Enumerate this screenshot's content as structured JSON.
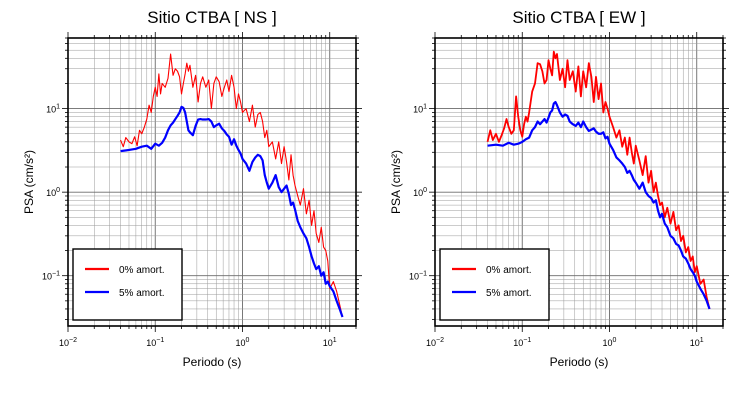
{
  "chart_data": [
    {
      "type": "line",
      "title": "Sitio CTBA [ NS ]",
      "xlabel": "Periodo (s)",
      "ylabel": "PSA (cm/s²)",
      "xscale": "log",
      "yscale": "log",
      "xlim": [
        0.01,
        20
      ],
      "ylim": [
        0.025,
        70
      ],
      "grid": true,
      "legend_placement": "bottom-left",
      "x_tick_labels": [
        {
          "value": 0.01,
          "base": "10",
          "exp": "−2"
        },
        {
          "value": 0.1,
          "base": "10",
          "exp": "−1"
        },
        {
          "value": 1,
          "base": "10",
          "exp": "0"
        },
        {
          "value": 10,
          "base": "10",
          "exp": "1"
        }
      ],
      "y_tick_labels": [
        {
          "value": 0.1,
          "base": "10",
          "exp": "−1"
        },
        {
          "value": 1,
          "base": "10",
          "exp": "0"
        },
        {
          "value": 10,
          "base": "10",
          "exp": "1"
        }
      ],
      "series": [
        {
          "name": "0% amort.",
          "color": "#ff0000",
          "x": [
            0.04,
            0.043,
            0.046,
            0.05,
            0.054,
            0.058,
            0.062,
            0.066,
            0.07,
            0.075,
            0.08,
            0.085,
            0.09,
            0.095,
            0.1,
            0.105,
            0.11,
            0.115,
            0.12,
            0.13,
            0.14,
            0.15,
            0.16,
            0.17,
            0.18,
            0.19,
            0.2,
            0.21,
            0.22,
            0.23,
            0.24,
            0.25,
            0.27,
            0.29,
            0.31,
            0.33,
            0.35,
            0.38,
            0.41,
            0.44,
            0.47,
            0.5,
            0.54,
            0.58,
            0.62,
            0.66,
            0.7,
            0.75,
            0.8,
            0.85,
            0.9,
            0.95,
            1.0,
            1.1,
            1.2,
            1.3,
            1.4,
            1.5,
            1.6,
            1.7,
            1.8,
            1.9,
            2.0,
            2.2,
            2.4,
            2.6,
            2.8,
            3.0,
            3.2,
            3.4,
            3.6,
            3.8,
            4.0,
            4.3,
            4.6,
            5.0,
            5.4,
            5.8,
            6.2,
            6.6,
            7.0,
            7.5,
            8.0,
            8.5,
            9.0,
            9.5,
            10.0,
            11.0,
            12.0,
            13.0,
            14.0
          ],
          "values": [
            4.2,
            3.5,
            4.5,
            4.0,
            3.8,
            4.6,
            3.6,
            5.5,
            5.0,
            6.0,
            7.5,
            11.0,
            9.0,
            14.0,
            18.0,
            14.0,
            26.0,
            15.0,
            20.0,
            18.0,
            23.0,
            45.0,
            25.0,
            30.0,
            28.0,
            24.0,
            15.0,
            20.0,
            26.0,
            35.0,
            28.0,
            33.0,
            18.0,
            25.0,
            12.0,
            20.0,
            24.0,
            18.0,
            22.0,
            10.0,
            20.0,
            24.0,
            21.0,
            14.0,
            18.0,
            22.0,
            16.0,
            25.0,
            18.0,
            10.0,
            15.0,
            12.0,
            9.0,
            10.0,
            7.0,
            11.0,
            6.0,
            8.5,
            9.0,
            7.0,
            4.5,
            5.5,
            3.5,
            4.0,
            2.5,
            4.0,
            2.2,
            3.5,
            2.3,
            1.4,
            2.8,
            1.6,
            1.2,
            0.9,
            0.7,
            1.1,
            0.55,
            0.8,
            0.4,
            0.6,
            0.32,
            0.25,
            0.38,
            0.22,
            0.2,
            0.15,
            0.07,
            0.085,
            0.065,
            0.045,
            0.032
          ]
        },
        {
          "name": "5% amort.",
          "color": "#0000ff",
          "x": [
            0.04,
            0.05,
            0.06,
            0.07,
            0.08,
            0.09,
            0.1,
            0.11,
            0.12,
            0.13,
            0.14,
            0.15,
            0.16,
            0.17,
            0.18,
            0.19,
            0.2,
            0.21,
            0.22,
            0.23,
            0.24,
            0.25,
            0.27,
            0.29,
            0.31,
            0.33,
            0.35,
            0.38,
            0.41,
            0.44,
            0.47,
            0.5,
            0.54,
            0.58,
            0.62,
            0.66,
            0.7,
            0.75,
            0.8,
            0.85,
            0.9,
            0.95,
            1.0,
            1.1,
            1.2,
            1.3,
            1.4,
            1.5,
            1.6,
            1.7,
            1.8,
            1.9,
            2.0,
            2.2,
            2.4,
            2.6,
            2.8,
            3.0,
            3.2,
            3.4,
            3.6,
            3.8,
            4.0,
            4.3,
            4.6,
            5.0,
            5.4,
            5.8,
            6.2,
            6.6,
            7.0,
            7.5,
            8.0,
            8.5,
            9.0,
            9.5,
            10.0,
            11.0,
            12.0,
            13.0,
            14.0
          ],
          "values": [
            3.1,
            3.2,
            3.3,
            3.5,
            3.6,
            3.3,
            3.8,
            3.6,
            3.9,
            4.5,
            5.5,
            6.3,
            6.8,
            7.5,
            8.2,
            9.0,
            10.5,
            10.2,
            9.0,
            7.0,
            5.5,
            5.2,
            4.8,
            6.2,
            7.4,
            7.5,
            7.4,
            7.4,
            7.5,
            7.0,
            6.0,
            6.3,
            6.6,
            5.8,
            5.4,
            4.9,
            4.6,
            3.7,
            4.3,
            3.6,
            3.2,
            2.9,
            2.5,
            2.2,
            1.8,
            2.3,
            2.6,
            2.8,
            2.7,
            2.4,
            1.6,
            1.3,
            1.1,
            1.3,
            1.6,
            1.15,
            1.0,
            1.1,
            1.2,
            0.95,
            0.7,
            0.75,
            0.62,
            0.45,
            0.38,
            0.32,
            0.28,
            0.22,
            0.17,
            0.14,
            0.12,
            0.13,
            0.1,
            0.11,
            0.08,
            0.085,
            0.075,
            0.065,
            0.05,
            0.04,
            0.032
          ]
        }
      ]
    },
    {
      "type": "line",
      "title": "Sitio CTBA [ EW ]",
      "xlabel": "Periodo (s)",
      "ylabel": "PSA (cm/s²)",
      "xscale": "log",
      "yscale": "log",
      "xlim": [
        0.01,
        20
      ],
      "ylim": [
        0.025,
        70
      ],
      "grid": true,
      "legend_placement": "bottom-left",
      "x_tick_labels": [
        {
          "value": 0.01,
          "base": "10",
          "exp": "−2"
        },
        {
          "value": 0.1,
          "base": "10",
          "exp": "−1"
        },
        {
          "value": 1,
          "base": "10",
          "exp": "0"
        },
        {
          "value": 10,
          "base": "10",
          "exp": "1"
        }
      ],
      "y_tick_labels": [
        {
          "value": 0.1,
          "base": "10",
          "exp": "−1"
        },
        {
          "value": 1,
          "base": "10",
          "exp": "0"
        },
        {
          "value": 10,
          "base": "10",
          "exp": "1"
        }
      ],
      "series": [
        {
          "name": "0% amort.",
          "color": "#ff0000",
          "x": [
            0.04,
            0.043,
            0.046,
            0.05,
            0.054,
            0.058,
            0.062,
            0.066,
            0.07,
            0.075,
            0.08,
            0.085,
            0.09,
            0.095,
            0.1,
            0.105,
            0.11,
            0.115,
            0.12,
            0.13,
            0.14,
            0.15,
            0.16,
            0.17,
            0.18,
            0.19,
            0.2,
            0.21,
            0.22,
            0.23,
            0.24,
            0.25,
            0.27,
            0.29,
            0.31,
            0.33,
            0.35,
            0.38,
            0.41,
            0.44,
            0.47,
            0.5,
            0.54,
            0.58,
            0.62,
            0.66,
            0.7,
            0.75,
            0.8,
            0.85,
            0.9,
            0.95,
            1.0,
            1.1,
            1.2,
            1.3,
            1.4,
            1.5,
            1.6,
            1.7,
            1.8,
            1.9,
            2.0,
            2.2,
            2.4,
            2.6,
            2.8,
            3.0,
            3.2,
            3.4,
            3.6,
            3.8,
            4.0,
            4.3,
            4.6,
            5.0,
            5.4,
            5.8,
            6.2,
            6.6,
            7.0,
            7.5,
            8.0,
            8.5,
            9.0,
            9.5,
            10.0,
            11.0,
            12.0,
            13.0,
            14.0
          ],
          "values": [
            4.0,
            5.5,
            4.2,
            5.0,
            4.0,
            4.8,
            5.8,
            7.5,
            6.0,
            5.0,
            5.5,
            14.0,
            8.0,
            5.5,
            4.6,
            6.5,
            8.0,
            7.0,
            9.0,
            16.0,
            20.0,
            35.0,
            34.0,
            28.0,
            20.0,
            22.0,
            38.0,
            30.0,
            25.0,
            48.0,
            40.0,
            45.0,
            22.0,
            30.0,
            18.0,
            38.0,
            22.0,
            28.0,
            16.0,
            32.0,
            14.0,
            28.0,
            18.0,
            35.0,
            24.0,
            12.0,
            24.0,
            13.0,
            20.0,
            9.0,
            12.0,
            10.0,
            8.0,
            6.0,
            4.5,
            5.5,
            3.5,
            4.5,
            2.8,
            4.5,
            3.0,
            2.2,
            3.6,
            2.4,
            1.6,
            2.7,
            1.3,
            1.8,
            1.0,
            1.3,
            0.9,
            0.7,
            0.75,
            0.5,
            0.65,
            0.42,
            0.58,
            0.35,
            0.4,
            0.26,
            0.3,
            0.19,
            0.22,
            0.15,
            0.17,
            0.11,
            0.13,
            0.08,
            0.09,
            0.055,
            0.04
          ]
        },
        {
          "name": "5% amort.",
          "color": "#0000ff",
          "x": [
            0.04,
            0.05,
            0.06,
            0.07,
            0.08,
            0.09,
            0.1,
            0.11,
            0.12,
            0.13,
            0.14,
            0.15,
            0.16,
            0.17,
            0.18,
            0.19,
            0.2,
            0.21,
            0.22,
            0.23,
            0.24,
            0.25,
            0.27,
            0.29,
            0.31,
            0.33,
            0.35,
            0.38,
            0.41,
            0.44,
            0.47,
            0.5,
            0.54,
            0.58,
            0.62,
            0.66,
            0.7,
            0.75,
            0.8,
            0.85,
            0.9,
            0.95,
            1.0,
            1.1,
            1.2,
            1.3,
            1.4,
            1.5,
            1.6,
            1.7,
            1.8,
            1.9,
            2.0,
            2.2,
            2.4,
            2.6,
            2.8,
            3.0,
            3.2,
            3.4,
            3.6,
            3.8,
            4.0,
            4.3,
            4.6,
            5.0,
            5.4,
            5.8,
            6.2,
            6.6,
            7.0,
            7.5,
            8.0,
            8.5,
            9.0,
            9.5,
            10.0,
            11.0,
            12.0,
            13.0,
            14.0
          ],
          "values": [
            3.6,
            3.7,
            3.6,
            3.9,
            3.7,
            3.8,
            4.0,
            4.3,
            4.5,
            5.5,
            6.0,
            7.0,
            6.5,
            7.0,
            7.5,
            6.8,
            7.8,
            9.0,
            9.5,
            11.5,
            12.0,
            11.0,
            9.0,
            8.0,
            8.5,
            8.2,
            7.0,
            6.5,
            6.2,
            6.8,
            6.0,
            7.0,
            6.0,
            5.4,
            5.6,
            5.8,
            5.3,
            5.0,
            5.0,
            5.2,
            4.4,
            4.6,
            3.8,
            3.2,
            2.6,
            2.4,
            2.2,
            2.0,
            1.7,
            1.8,
            1.6,
            1.4,
            1.3,
            1.1,
            1.3,
            1.0,
            0.9,
            0.85,
            0.75,
            0.8,
            0.6,
            0.5,
            0.55,
            0.42,
            0.38,
            0.3,
            0.28,
            0.24,
            0.23,
            0.2,
            0.17,
            0.16,
            0.14,
            0.12,
            0.11,
            0.1,
            0.085,
            0.07,
            0.06,
            0.05,
            0.04
          ]
        }
      ]
    }
  ]
}
